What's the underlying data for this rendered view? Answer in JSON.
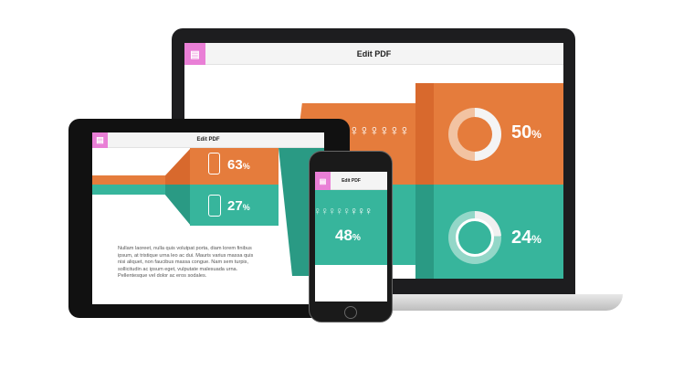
{
  "app": {
    "title": "Edit PDF",
    "logo_icon": "layout-icon"
  },
  "colors": {
    "orange": "#e57c3c",
    "teal": "#37b59c",
    "pink": "#e97fd6"
  },
  "laptop": {
    "stats": [
      {
        "value": "50",
        "unit": "%",
        "progress": 0.5
      },
      {
        "value": "24",
        "unit": "%",
        "progress": 0.24
      }
    ]
  },
  "tablet": {
    "stats": [
      {
        "value": "63",
        "unit": "%",
        "icon": "smartphone-icon"
      },
      {
        "value": "27",
        "unit": "%",
        "icon": "media-player-icon"
      }
    ],
    "paragraph": "Nullam laoreet, nulla quis volutpat porta, diam lorem finibus ipsum, at tristique urna leo ac dui. Mauris varius massa quis nisi aliquet, non faucibus massa congue. Nam sem turpis, sollicitudin ac ipsum eget, vulputate malesuada urna. Pellentesque vel dolor ac eros sodales."
  },
  "phone": {
    "stat": {
      "value": "48",
      "unit": "%"
    }
  }
}
